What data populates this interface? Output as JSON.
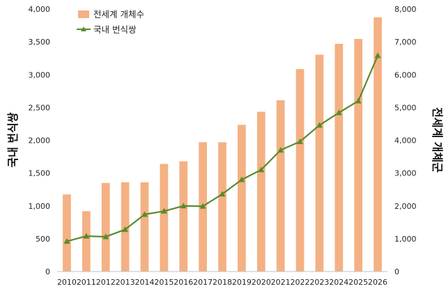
{
  "chart_data": {
    "type": "bar",
    "categories": [
      "2010",
      "2011",
      "2012",
      "2013",
      "2014",
      "2015",
      "2016",
      "2017",
      "2018",
      "2019",
      "2020",
      "2021",
      "2022",
      "2023",
      "2024",
      "2025",
      "2026"
    ],
    "series": [
      {
        "name": "전세계 개체수",
        "type": "bar",
        "axis": "right",
        "color": "#f4b183",
        "values": [
          2350,
          1840,
          2700,
          2720,
          2720,
          3280,
          3360,
          3940,
          3940,
          4470,
          4870,
          5220,
          6170,
          6610,
          6940,
          7090,
          7750
        ]
      },
      {
        "name": "국내 번식쌍",
        "type": "line",
        "axis": "left",
        "color": "#5a8a2e",
        "values": [
          460,
          540,
          530,
          640,
          870,
          920,
          1000,
          995,
          1180,
          1400,
          1550,
          1850,
          1980,
          2230,
          2420,
          2600,
          3290
        ]
      }
    ],
    "y_left": {
      "label": "국내 번식쌍",
      "min": 0,
      "max": 4000,
      "step": 500,
      "ticks": [
        "0",
        "500",
        "1,000",
        "1,500",
        "2,000",
        "2,500",
        "3,000",
        "3,500",
        "4,000"
      ]
    },
    "y_right": {
      "label": "전세계 개체군",
      "min": 0,
      "max": 8000,
      "step": 1000,
      "ticks": [
        "0",
        "1,000",
        "2,000",
        "3,000",
        "4,000",
        "5,000",
        "6,000",
        "7,000",
        "8,000"
      ]
    },
    "grid": false,
    "legend": "top-left"
  }
}
